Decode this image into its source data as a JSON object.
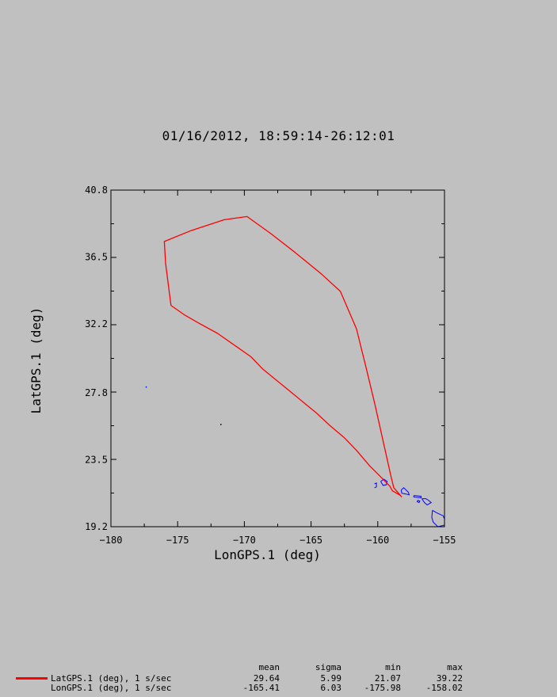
{
  "header": {
    "title": "01/16/2012, 18:59:14-26:12:01"
  },
  "chart_data": {
    "type": "line",
    "title": "01/16/2012, 18:59:14-26:12:01",
    "xlabel": "LonGPS.1 (deg)",
    "ylabel": "LatGPS.1 (deg)",
    "xlim": [
      -180,
      -155
    ],
    "ylim": [
      19.2,
      40.8
    ],
    "x_ticks": [
      -180,
      -175,
      -170,
      -165,
      -160,
      -155
    ],
    "x_tick_labels": [
      "−180",
      "−175",
      "−170",
      "−165",
      "−160",
      "−155"
    ],
    "y_ticks": [
      19.2,
      23.5,
      27.8,
      32.2,
      36.5,
      40.8
    ],
    "y_tick_labels": [
      "19.2",
      "23.5",
      "27.8",
      "32.2",
      "36.5",
      "40.8"
    ],
    "grid": false,
    "series": [
      {
        "name": "LatGPS.1 (deg), 1 s/sec",
        "color": "#ff0000",
        "x": [
          -158.3,
          -158.9,
          -159.1,
          -159.9,
          -160.6,
          -161.6,
          -162.5,
          -163.6,
          -164.6,
          -165.6,
          -166.6,
          -167.6,
          -168.6,
          -169.5,
          -170.5,
          -172.0,
          -173.5,
          -174.5,
          -175.5,
          -175.9,
          -176.0,
          -174.0,
          -171.5,
          -169.8,
          -168.0,
          -166.2,
          -164.2,
          -162.8,
          -161.6,
          -160.9,
          -160.2,
          -159.6,
          -159.0,
          -158.8,
          -158.5,
          -158.2
        ],
        "y": [
          21.2,
          21.5,
          21.8,
          22.5,
          23.1,
          24.1,
          24.9,
          25.7,
          26.5,
          27.2,
          27.9,
          28.6,
          29.3,
          30.1,
          30.7,
          31.6,
          32.3,
          32.8,
          33.4,
          36.1,
          37.5,
          38.2,
          38.9,
          39.1,
          38.0,
          36.8,
          35.4,
          34.3,
          31.9,
          29.5,
          27.0,
          24.7,
          22.4,
          21.7,
          21.4,
          21.1
        ]
      }
    ],
    "coastlines": {
      "color": "#0000ff",
      "islands": [
        {
          "name": "Kauai",
          "x": [
            -159.78,
            -159.55,
            -159.3,
            -159.35,
            -159.6,
            -159.78
          ],
          "y": [
            22.1,
            22.25,
            22.1,
            21.9,
            21.85,
            22.1
          ]
        },
        {
          "name": "Niihau",
          "x": [
            -160.25,
            -160.1,
            -160.1,
            -160.25
          ],
          "y": [
            21.95,
            22.0,
            21.75,
            21.7
          ]
        },
        {
          "name": "Oahu",
          "x": [
            -158.25,
            -158.05,
            -157.7,
            -157.65,
            -157.9,
            -158.2,
            -158.25
          ],
          "y": [
            21.55,
            21.7,
            21.4,
            21.25,
            21.3,
            21.35,
            21.55
          ]
        },
        {
          "name": "Molokai",
          "x": [
            -157.3,
            -156.75,
            -156.75,
            -157.3,
            -157.3
          ],
          "y": [
            21.2,
            21.15,
            21.05,
            21.1,
            21.2
          ]
        },
        {
          "name": "Maui",
          "x": [
            -156.7,
            -156.4,
            -156.2,
            -156.0,
            -156.3,
            -156.5,
            -156.7
          ],
          "y": [
            21.0,
            21.0,
            20.9,
            20.75,
            20.6,
            20.75,
            21.0
          ]
        },
        {
          "name": "Lanai",
          "x": [
            -157.0,
            -156.85,
            -156.9,
            -157.05,
            -157.0
          ],
          "y": [
            20.9,
            20.85,
            20.75,
            20.8,
            20.9
          ]
        },
        {
          "name": "Hawaii",
          "x": [
            -155.9,
            -155.6,
            -155.1,
            -155.0,
            -155.0,
            -155.5,
            -155.85,
            -155.95,
            -155.9
          ],
          "y": [
            20.25,
            20.1,
            19.9,
            19.7,
            19.3,
            19.2,
            19.5,
            19.8,
            20.25
          ]
        }
      ],
      "specks": [
        {
          "x": -177.4,
          "y": 28.2
        },
        {
          "x": -171.8,
          "y": 25.8
        }
      ]
    }
  },
  "legend": {
    "columns": [
      "mean",
      "sigma",
      "min",
      "max"
    ],
    "rows": [
      {
        "label": "LatGPS.1 (deg), 1 s/sec",
        "color": "#ff0000",
        "mean": "29.64",
        "sigma": "5.99",
        "min": "21.07",
        "max": "39.22"
      },
      {
        "label": "LonGPS.1 (deg), 1 s/sec",
        "mean": "-165.41",
        "sigma": "6.03",
        "min": "-175.98",
        "max": "-158.02"
      }
    ]
  }
}
